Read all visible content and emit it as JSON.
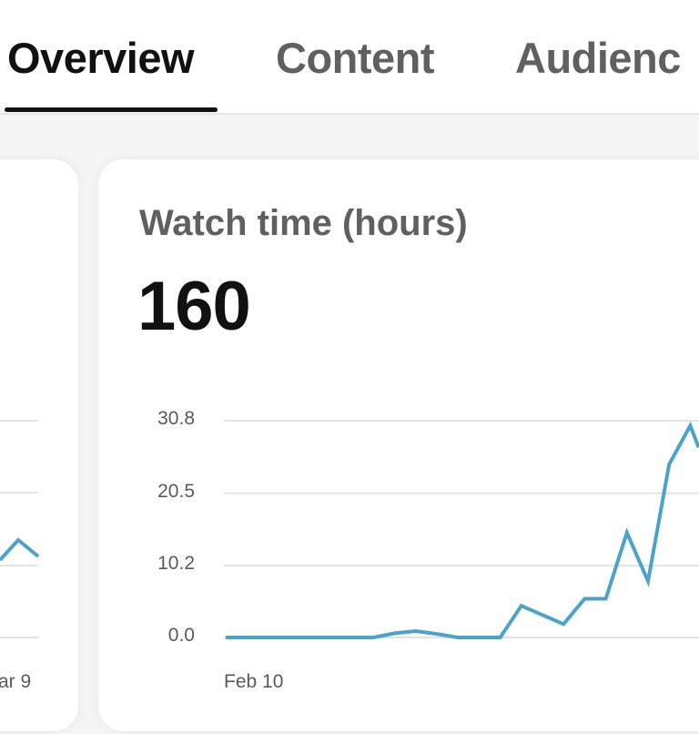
{
  "tabs": [
    {
      "label": "Overview",
      "active": true
    },
    {
      "label": "Content",
      "active": false
    },
    {
      "label": "Audienc",
      "active": false
    }
  ],
  "cards": {
    "left": {
      "x_tick_end": "ar 9",
      "partial_line_points": [
        [
          0,
          615
        ],
        [
          20,
          593
        ],
        [
          42,
          611
        ]
      ]
    },
    "right": {
      "title": "Watch time (hours)",
      "value": "160"
    }
  },
  "colors": {
    "line": "#4ba3c9",
    "grid": "#e3e3e3",
    "active_tab": "#111111",
    "inactive_tab": "#606060"
  },
  "chart_data": {
    "type": "line",
    "title": "Watch time (hours)",
    "total": 160,
    "xlabel": "",
    "ylabel": "Watch time (hours)",
    "y_ticks": [
      "30.8",
      "20.5",
      "10.2",
      "0.0"
    ],
    "y_tick_values": [
      30.8,
      20.5,
      10.2,
      0.0
    ],
    "ylim": [
      0,
      30.8
    ],
    "x_tick_labels": [
      "Feb 10"
    ],
    "grid": true,
    "legend": null,
    "series": [
      {
        "name": "Watch time (hours)",
        "x": [
          0,
          1,
          2,
          3,
          4,
          5,
          6,
          7,
          8,
          9,
          10,
          11,
          12,
          13,
          14,
          15,
          16,
          17,
          18,
          19,
          20,
          21,
          22
        ],
        "values": [
          0,
          0,
          0,
          0,
          0,
          0,
          0,
          0,
          0.6,
          0.9,
          0.5,
          0,
          0,
          0,
          4.5,
          3.2,
          1.9,
          5.5,
          5.5,
          14.9,
          8.0,
          24.6,
          30.1
        ]
      }
    ]
  }
}
